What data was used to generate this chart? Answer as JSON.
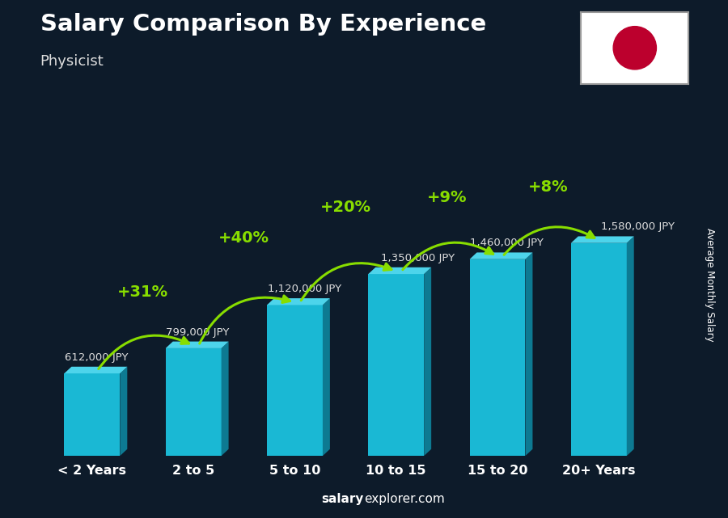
{
  "title": "Salary Comparison By Experience",
  "subtitle": "Physicist",
  "categories": [
    "< 2 Years",
    "2 to 5",
    "5 to 10",
    "10 to 15",
    "15 to 20",
    "20+ Years"
  ],
  "values": [
    612000,
    799000,
    1120000,
    1350000,
    1460000,
    1580000
  ],
  "value_labels": [
    "612,000 JPY",
    "799,000 JPY",
    "1,120,000 JPY",
    "1,350,000 JPY",
    "1,460,000 JPY",
    "1,580,000 JPY"
  ],
  "pct_labels": [
    "+31%",
    "+40%",
    "+20%",
    "+9%",
    "+8%"
  ],
  "bar_color_face": "#1ab8d4",
  "bar_color_side": "#0d7a92",
  "bar_color_top": "#4dd4eb",
  "background_color": "#0d1b2a",
  "title_color": "#ffffff",
  "subtitle_color": "#dddddd",
  "label_color": "#ffffff",
  "pct_color": "#88dd00",
  "ylabel": "Average Monthly Salary",
  "footer_bold": "salary",
  "footer_normal": "explorer.com",
  "ylim_max": 2000000,
  "flag_red": "#bc002d",
  "val_label_color": "#dddddd"
}
